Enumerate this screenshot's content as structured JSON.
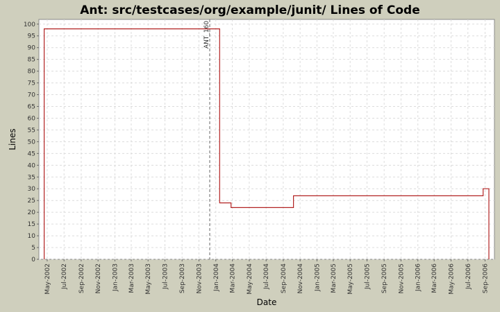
{
  "colors": {
    "background": "#cfcfbd",
    "plot_background": "#ffffff",
    "series": "#b22222",
    "grid": "#dcdcdc",
    "marker": "#666666"
  },
  "chart_data": {
    "type": "line",
    "step": true,
    "title": "Ant: src/testcases/org/example/junit/ Lines of Code",
    "xlabel": "Date",
    "ylabel": "Lines",
    "xlim": [
      "2002-04-01",
      "2006-10-05"
    ],
    "ylim": [
      0,
      102
    ],
    "grid": true,
    "y_ticks": [
      0,
      5,
      10,
      15,
      20,
      25,
      30,
      35,
      40,
      45,
      50,
      55,
      60,
      65,
      70,
      75,
      80,
      85,
      90,
      95,
      100
    ],
    "x_ticks": [
      {
        "label": "May-2002",
        "date": "2002-05-01"
      },
      {
        "label": "Jul-2002",
        "date": "2002-07-01"
      },
      {
        "label": "Sep-2002",
        "date": "2002-09-01"
      },
      {
        "label": "Nov-2002",
        "date": "2002-11-01"
      },
      {
        "label": "Jan-2003",
        "date": "2003-01-01"
      },
      {
        "label": "Mar-2003",
        "date": "2003-03-01"
      },
      {
        "label": "May-2003",
        "date": "2003-05-01"
      },
      {
        "label": "Jul-2003",
        "date": "2003-07-01"
      },
      {
        "label": "Sep-2003",
        "date": "2003-09-01"
      },
      {
        "label": "Nov-2003",
        "date": "2003-11-01"
      },
      {
        "label": "Jan-2004",
        "date": "2004-01-01"
      },
      {
        "label": "Mar-2004",
        "date": "2004-03-01"
      },
      {
        "label": "May-2004",
        "date": "2004-05-01"
      },
      {
        "label": "Jul-2004",
        "date": "2004-07-01"
      },
      {
        "label": "Sep-2004",
        "date": "2004-09-01"
      },
      {
        "label": "Nov-2004",
        "date": "2004-11-01"
      },
      {
        "label": "Jan-2005",
        "date": "2005-01-01"
      },
      {
        "label": "Mar-2005",
        "date": "2005-03-01"
      },
      {
        "label": "May-2005",
        "date": "2005-05-01"
      },
      {
        "label": "Jul-2005",
        "date": "2005-07-01"
      },
      {
        "label": "Sep-2005",
        "date": "2005-09-01"
      },
      {
        "label": "Nov-2005",
        "date": "2005-11-01"
      },
      {
        "label": "Jan-2006",
        "date": "2006-01-01"
      },
      {
        "label": "Mar-2006",
        "date": "2006-03-01"
      },
      {
        "label": "May-2006",
        "date": "2006-05-01"
      },
      {
        "label": "Jul-2006",
        "date": "2006-07-01"
      },
      {
        "label": "Sep-2006",
        "date": "2006-09-01"
      }
    ],
    "series": [
      {
        "points": [
          {
            "x": "2002-04-20",
            "y": 0
          },
          {
            "x": "2002-04-20",
            "y": 98
          },
          {
            "x": "2004-01-15",
            "y": 98
          },
          {
            "x": "2004-01-15",
            "y": 24
          },
          {
            "x": "2004-02-25",
            "y": 24
          },
          {
            "x": "2004-02-25",
            "y": 22
          },
          {
            "x": "2004-10-08",
            "y": 22
          },
          {
            "x": "2004-10-08",
            "y": 27
          },
          {
            "x": "2006-08-25",
            "y": 27
          },
          {
            "x": "2006-08-25",
            "y": 30
          },
          {
            "x": "2006-09-15",
            "y": 30
          },
          {
            "x": "2006-09-15",
            "y": 0
          }
        ]
      }
    ],
    "markers": [
      {
        "label": "ANT_160",
        "date": "2003-12-10"
      }
    ]
  }
}
